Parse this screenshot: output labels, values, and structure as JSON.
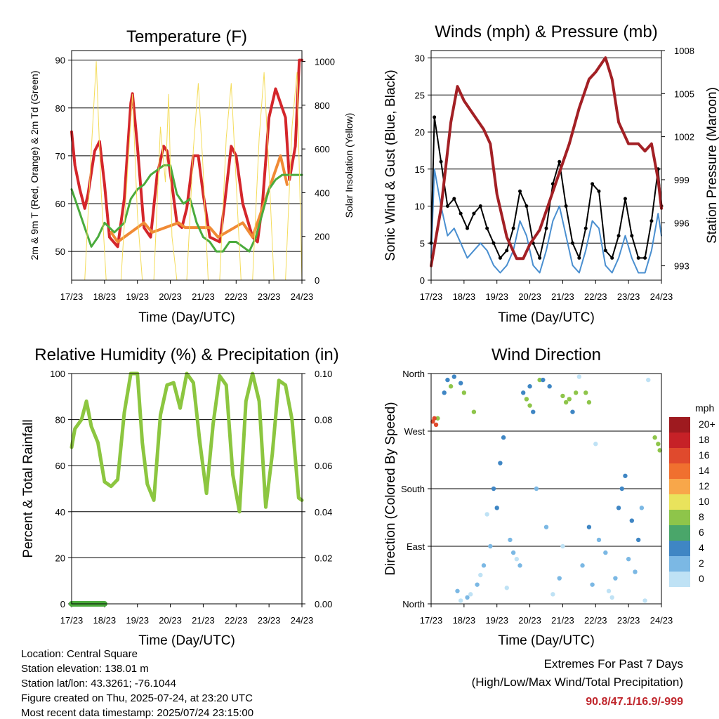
{
  "chart_data": [
    {
      "id": "temperature",
      "type": "line",
      "title": "Temperature (F)",
      "xlabel": "Time (Day/UTC)",
      "ylabel": "2m & 9m T (Red, Orange) & 2m Td (Green)",
      "y2label": "Solar Insolation (Yellow)",
      "x_ticks": [
        "17/23",
        "18/23",
        "19/23",
        "20/23",
        "21/23",
        "22/23",
        "23/23",
        "24/23"
      ],
      "y_ticks": [
        50,
        60,
        70,
        80,
        90
      ],
      "y2_ticks": [
        0,
        200,
        400,
        600,
        800,
        1000
      ],
      "ylim": [
        44,
        92
      ],
      "y2lim": [
        0,
        1050
      ],
      "xlim": [
        0,
        7
      ],
      "grid": true,
      "series": [
        {
          "color": "#d4262b",
          "x": [
            0,
            0.1,
            0.25,
            0.4,
            0.5,
            0.7,
            0.85,
            1.0,
            1.15,
            1.4,
            1.6,
            1.8,
            1.85,
            2.0,
            2.2,
            2.4,
            2.6,
            2.8,
            2.9,
            3.05,
            3.2,
            3.35,
            3.5,
            3.7,
            3.85,
            4.0,
            4.2,
            4.5,
            4.65,
            4.85,
            5.0,
            5.2,
            5.5,
            5.65,
            5.8,
            6.0,
            6.2,
            6.5,
            6.62,
            6.8,
            6.92,
            7.0
          ],
          "y": [
            75,
            68,
            63,
            59,
            62,
            71,
            73,
            64,
            53,
            51,
            61,
            81,
            83,
            72,
            55,
            53,
            66,
            72,
            71,
            64,
            56,
            55,
            59,
            70,
            70,
            62,
            53,
            52,
            60,
            72,
            70,
            60,
            53,
            52,
            60,
            78,
            84,
            78,
            65,
            72,
            90,
            90
          ]
        },
        {
          "color": "#f08a35",
          "x": [
            1.2,
            1.4,
            2.2,
            2.45,
            3.25,
            3.45,
            4.2,
            4.45,
            5.2,
            5.5,
            6.35,
            6.55
          ],
          "y": [
            54,
            52,
            56,
            54,
            56,
            55,
            55,
            53,
            56,
            53,
            70,
            64
          ]
        },
        {
          "color": "#4aab3c",
          "x": [
            0,
            0.2,
            0.4,
            0.6,
            0.8,
            1.0,
            1.3,
            1.6,
            1.8,
            2.0,
            2.2,
            2.4,
            2.6,
            2.8,
            3.0,
            3.2,
            3.4,
            3.6,
            3.8,
            4.0,
            4.2,
            4.4,
            4.6,
            4.8,
            5.0,
            5.2,
            5.4,
            5.6,
            5.8,
            6.0,
            6.2,
            6.4,
            6.6,
            6.8,
            7.0
          ],
          "y": [
            63,
            59,
            55,
            51,
            53,
            56,
            54,
            56,
            61,
            63,
            64,
            66,
            67,
            68,
            68,
            62,
            60,
            61,
            56,
            53,
            52,
            50,
            50,
            52,
            52,
            51,
            50,
            53,
            58,
            63,
            65,
            66,
            66,
            66,
            66
          ]
        },
        {
          "color": "#f4dc5a",
          "x": [
            0,
            0.4,
            0.6,
            0.75,
            0.9,
            1.05,
            1.5,
            1.7,
            1.85,
            2.0,
            2.15,
            2.5,
            2.7,
            2.85,
            2.95,
            3.05,
            3.2,
            3.5,
            3.7,
            3.85,
            4.0,
            4.15,
            4.5,
            4.7,
            4.85,
            5.0,
            5.15,
            5.5,
            5.7,
            5.85,
            6.0,
            6.15,
            6.5,
            6.7,
            6.85,
            7.0
          ],
          "y": [
            0,
            0,
            600,
            1000,
            400,
            0,
            0,
            500,
            850,
            300,
            0,
            0,
            700,
            450,
            850,
            200,
            0,
            0,
            600,
            900,
            500,
            0,
            0,
            650,
            900,
            450,
            0,
            0,
            650,
            950,
            500,
            0,
            0,
            700,
            950,
            0
          ]
        }
      ]
    },
    {
      "id": "winds",
      "type": "line",
      "title": "Winds (mph) & Pressure (mb)",
      "xlabel": "Time (Day/UTC)",
      "ylabel": "Sonic Wind & Gust (Blue, Black)",
      "y2label": "Station Pressure (Maroon)",
      "x_ticks": [
        "17/23",
        "18/23",
        "19/23",
        "20/23",
        "21/23",
        "22/23",
        "23/23",
        "24/23"
      ],
      "y_ticks": [
        0,
        5,
        10,
        15,
        20,
        25,
        30
      ],
      "y2_ticks": [
        993,
        996,
        999,
        1002,
        1005,
        1008
      ],
      "ylim": [
        0,
        31
      ],
      "y2lim": [
        992,
        1008
      ],
      "xlim": [
        0,
        7
      ],
      "grid": true,
      "series": [
        {
          "color": "#4a8fd0",
          "x": [
            0,
            0.1,
            0.3,
            0.5,
            0.7,
            0.9,
            1.1,
            1.3,
            1.5,
            1.7,
            1.9,
            2.1,
            2.3,
            2.5,
            2.7,
            2.9,
            3.1,
            3.3,
            3.5,
            3.7,
            3.9,
            4.1,
            4.3,
            4.5,
            4.7,
            4.9,
            5.1,
            5.3,
            5.5,
            5.7,
            5.9,
            6.1,
            6.3,
            6.5,
            6.7,
            6.9,
            7.0
          ],
          "y": [
            3,
            15,
            10,
            6,
            7,
            5,
            3,
            4,
            5,
            4,
            2,
            1,
            2,
            4,
            8,
            6,
            2,
            1,
            4,
            8,
            10,
            6,
            2,
            1,
            4,
            8,
            7,
            2,
            1,
            3,
            6,
            3,
            1,
            1,
            4,
            9,
            6
          ]
        },
        {
          "color": "#000000",
          "x": [
            0,
            0.1,
            0.3,
            0.5,
            0.7,
            0.9,
            1.1,
            1.3,
            1.5,
            1.7,
            1.9,
            2.1,
            2.3,
            2.5,
            2.7,
            2.9,
            3.1,
            3.3,
            3.5,
            3.7,
            3.9,
            4.1,
            4.3,
            4.5,
            4.7,
            4.9,
            5.1,
            5.3,
            5.5,
            5.7,
            5.9,
            6.1,
            6.3,
            6.5,
            6.7,
            6.9,
            7.0
          ],
          "y": [
            5,
            22,
            16,
            10,
            11,
            9,
            7,
            9,
            10,
            7,
            5,
            3,
            4,
            7,
            12,
            10,
            5,
            3,
            7,
            13,
            16,
            10,
            5,
            3,
            7,
            13,
            12,
            4,
            3,
            6,
            11,
            6,
            3,
            3,
            8,
            15,
            10
          ]
        },
        {
          "color": "#a32025",
          "x": [
            0,
            0.3,
            0.6,
            0.8,
            1.0,
            1.3,
            1.6,
            1.8,
            2.0,
            2.3,
            2.6,
            2.8,
            3.0,
            3.3,
            3.6,
            3.9,
            4.2,
            4.5,
            4.8,
            5.0,
            5.3,
            5.5,
            5.7,
            6.0,
            6.3,
            6.5,
            6.7,
            6.9,
            7.0
          ],
          "y": [
            993,
            997,
            1003,
            1005.5,
            1004.5,
            1003.5,
            1002.5,
            1001.5,
            998,
            995,
            993.5,
            993.5,
            994.5,
            995.5,
            997.5,
            999.5,
            1001.5,
            1004,
            1006,
            1006.5,
            1007.5,
            1006,
            1003,
            1001.5,
            1001.5,
            1001,
            1001.5,
            999,
            997
          ]
        }
      ]
    },
    {
      "id": "rh",
      "type": "line",
      "title": "Relative Humidity (%) & Precipitation (in)",
      "xlabel": "Time (Day/UTC)",
      "ylabel": "Percent & Total Rainfall",
      "x_ticks": [
        "17/23",
        "18/23",
        "19/23",
        "20/23",
        "21/23",
        "22/23",
        "23/23",
        "24/23"
      ],
      "y_ticks": [
        0,
        20,
        40,
        60,
        80,
        100
      ],
      "y2_ticks": [
        "0.00",
        "0.02",
        "0.04",
        "0.06",
        "0.08",
        "0.10"
      ],
      "ylim": [
        0,
        100
      ],
      "y2lim": [
        0,
        0.1
      ],
      "xlim": [
        0,
        7
      ],
      "grid": true,
      "series": [
        {
          "color": "#8cc640",
          "x": [
            0,
            0.1,
            0.3,
            0.45,
            0.6,
            0.8,
            1.0,
            1.2,
            1.4,
            1.6,
            1.8,
            2.0,
            2.15,
            2.3,
            2.5,
            2.7,
            2.9,
            3.1,
            3.3,
            3.5,
            3.7,
            3.9,
            4.1,
            4.3,
            4.5,
            4.7,
            4.9,
            5.1,
            5.3,
            5.5,
            5.7,
            5.9,
            6.1,
            6.3,
            6.5,
            6.7,
            6.9,
            7.0
          ],
          "y": [
            68,
            76,
            80,
            88,
            77,
            70,
            53,
            51,
            54,
            83,
            100,
            100,
            70,
            52,
            45,
            82,
            95,
            96,
            85,
            100,
            96,
            70,
            48,
            78,
            99,
            95,
            56,
            40,
            88,
            100,
            88,
            42,
            65,
            97,
            95,
            80,
            46,
            45
          ]
        },
        {
          "color": "#4aab3c",
          "x": [
            0,
            0.3,
            0.6,
            0.9,
            1.0
          ],
          "y": [
            0,
            0,
            0,
            0,
            0
          ]
        }
      ]
    },
    {
      "id": "wind-direction",
      "type": "scatter",
      "title": "Wind Direction",
      "xlabel": "Time (Day/UTC)",
      "ylabel": "Direction (Colored By Speed)",
      "x_ticks": [
        "17/23",
        "18/23",
        "19/23",
        "20/23",
        "21/23",
        "22/23",
        "23/23",
        "24/23"
      ],
      "y_ticks": [
        "North",
        "East",
        "South",
        "West",
        "North"
      ],
      "ylim": [
        0,
        360
      ],
      "xlim": [
        0,
        7
      ],
      "grid": true,
      "colorbar": {
        "unit": "mph",
        "labels": [
          "20+",
          "18",
          "16",
          "14",
          "12",
          "10",
          "8",
          "6",
          "4",
          "2",
          "0"
        ],
        "colors": [
          "#9e1a1f",
          "#c62127",
          "#e04a2d",
          "#f0702f",
          "#f8a74a",
          "#e9e35c",
          "#8ec54a",
          "#4aa66a",
          "#3f86c4",
          "#7bb8e4",
          "#bfe2f5"
        ]
      },
      "series": [
        {
          "color": "#8ec54a",
          "x": [
            0.2,
            0.6,
            1.0,
            1.3,
            2.9,
            3.0,
            3.3,
            4.0,
            4.1,
            4.2,
            4.4,
            4.7,
            4.8,
            6.8,
            6.9,
            6.95
          ],
          "y": [
            290,
            340,
            330,
            300,
            320,
            310,
            350,
            325,
            315,
            320,
            330,
            330,
            315,
            260,
            250,
            240
          ]
        },
        {
          "color": "#3f86c4",
          "x": [
            0.4,
            0.5,
            0.7,
            0.9,
            1.9,
            2.0,
            2.1,
            2.2,
            2.8,
            3.0,
            3.1,
            3.4,
            3.6,
            4.3,
            4.8,
            5.7,
            5.8,
            5.9,
            6.1,
            6.3
          ],
          "y": [
            330,
            350,
            355,
            345,
            180,
            150,
            220,
            260,
            330,
            340,
            300,
            350,
            340,
            300,
            120,
            150,
            180,
            200,
            130,
            100
          ]
        },
        {
          "color": "#7bb8e4",
          "x": [
            0.8,
            1.1,
            1.4,
            1.6,
            1.8,
            2.4,
            2.5,
            2.7,
            3.2,
            3.5,
            3.9,
            4.6,
            4.9,
            5.1,
            5.3,
            5.6,
            6.0,
            6.2,
            6.4
          ],
          "y": [
            20,
            10,
            30,
            60,
            90,
            100,
            80,
            60,
            180,
            120,
            40,
            60,
            30,
            100,
            80,
            40,
            70,
            50,
            150
          ]
        },
        {
          "color": "#bfe2f5",
          "x": [
            0.9,
            1.2,
            1.5,
            1.7,
            2.3,
            2.6,
            3.7,
            4.0,
            4.5,
            5.0,
            5.4,
            5.5,
            6.5,
            6.6
          ],
          "y": [
            5,
            15,
            45,
            140,
            25,
            70,
            15,
            90,
            355,
            250,
            20,
            10,
            5,
            350
          ]
        },
        {
          "color": "#e04a2d",
          "x": [
            0.05,
            0.1,
            0.15
          ],
          "y": [
            285,
            290,
            280
          ]
        }
      ]
    }
  ],
  "footer": {
    "location": "Location: Central Square",
    "elevation": "Station elevation: 138.01 m",
    "latlon": "Station lat/lon: 43.3261; -76.1044",
    "created": "Figure created on Thu, 2025-07-24, at 23:20 UTC",
    "recent": "Most recent data timestamp: 2025/07/24 23:15:00"
  },
  "extremes": {
    "heading": "Extremes For Past 7 Days",
    "subheading": "(High/Low/Max Wind/Total Precipitation)",
    "values": "90.8/47.1/16.9/-999"
  }
}
